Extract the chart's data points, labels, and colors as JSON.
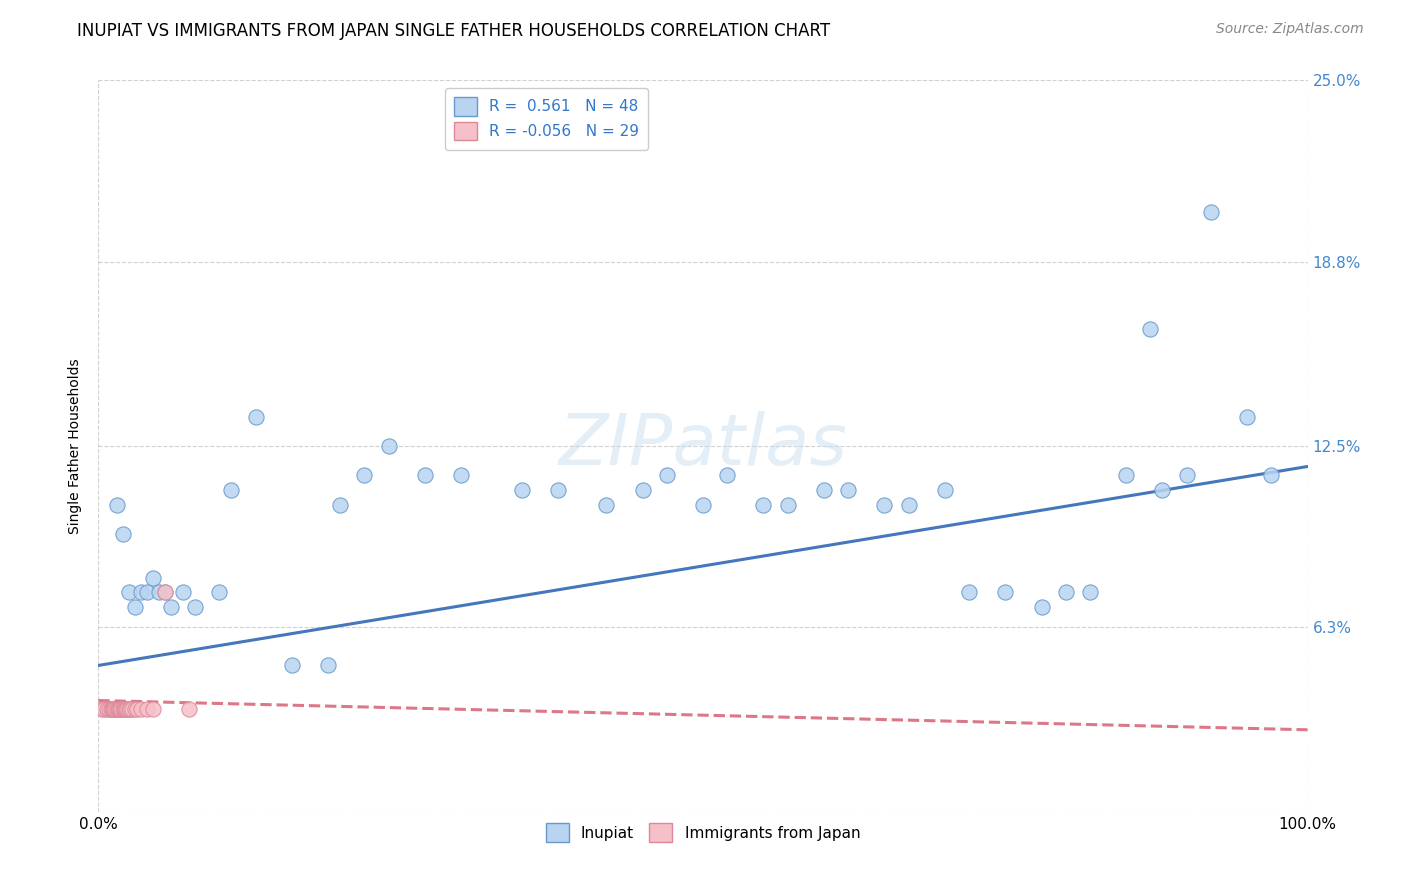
{
  "title": "INUPIAT VS IMMIGRANTS FROM JAPAN SINGLE FATHER HOUSEHOLDS CORRELATION CHART",
  "source": "Source: ZipAtlas.com",
  "ylabel": "Single Father Households",
  "xlim": [
    0,
    100
  ],
  "ylim": [
    0,
    25
  ],
  "yticks": [
    0,
    6.3,
    12.5,
    18.8,
    25.0
  ],
  "xticks": [
    0,
    100
  ],
  "grid_color": "#d0d0d0",
  "background_color": "#ffffff",
  "series": [
    {
      "name": "Inupiat",
      "R": 0.561,
      "N": 48,
      "color": "#b8d4f0",
      "edge_color": "#6699cc",
      "trend_color": "#4477bb",
      "trend_linestyle": "solid",
      "x": [
        1.5,
        2.0,
        2.5,
        3.0,
        3.5,
        4.0,
        4.5,
        5.0,
        5.5,
        6.0,
        7.0,
        8.0,
        10.0,
        11.0,
        13.0,
        16.0,
        19.0,
        20.0,
        22.0,
        24.0,
        27.0,
        30.0,
        35.0,
        38.0,
        42.0,
        45.0,
        47.0,
        50.0,
        52.0,
        55.0,
        57.0,
        60.0,
        62.0,
        65.0,
        67.0,
        70.0,
        72.0,
        75.0,
        78.0,
        80.0,
        82.0,
        85.0,
        87.0,
        88.0,
        90.0,
        92.0,
        95.0,
        97.0
      ],
      "y": [
        10.5,
        9.5,
        7.5,
        7.0,
        7.5,
        7.5,
        8.0,
        7.5,
        7.5,
        7.0,
        7.5,
        7.0,
        7.5,
        11.0,
        13.5,
        5.0,
        5.0,
        10.5,
        11.5,
        12.5,
        11.5,
        11.5,
        11.0,
        11.0,
        10.5,
        11.0,
        11.5,
        10.5,
        11.5,
        10.5,
        10.5,
        11.0,
        11.0,
        10.5,
        10.5,
        11.0,
        7.5,
        7.5,
        7.0,
        7.5,
        7.5,
        11.5,
        16.5,
        11.0,
        11.5,
        20.5,
        13.5,
        11.5
      ],
      "trend_x_start": 0,
      "trend_x_end": 100,
      "trend_y_start": 5.0,
      "trend_y_end": 11.8
    },
    {
      "name": "Immigrants from Japan",
      "R": -0.056,
      "N": 29,
      "color": "#f5c0c8",
      "edge_color": "#dd8899",
      "trend_color": "#dd7788",
      "trend_linestyle": "dashed",
      "x": [
        0.3,
        0.5,
        0.7,
        0.9,
        1.0,
        1.1,
        1.2,
        1.3,
        1.4,
        1.5,
        1.6,
        1.7,
        1.8,
        1.9,
        2.0,
        2.1,
        2.2,
        2.3,
        2.4,
        2.5,
        2.6,
        2.8,
        3.0,
        3.2,
        3.5,
        4.0,
        4.5,
        5.5,
        7.5
      ],
      "y": [
        3.5,
        3.5,
        3.5,
        3.5,
        3.5,
        3.5,
        3.5,
        3.5,
        3.5,
        3.5,
        3.5,
        3.5,
        3.5,
        3.5,
        3.5,
        3.5,
        3.5,
        3.5,
        3.5,
        3.5,
        3.5,
        3.5,
        3.5,
        3.5,
        3.5,
        3.5,
        3.5,
        7.5,
        3.5
      ],
      "trend_x_start": 0,
      "trend_x_end": 100,
      "trend_y_start": 3.8,
      "trend_y_end": 2.8
    }
  ],
  "title_fontsize": 12,
  "axis_label_fontsize": 10,
  "tick_fontsize": 11,
  "legend_fontsize": 11,
  "source_fontsize": 10,
  "watermark_fontsize": 52
}
